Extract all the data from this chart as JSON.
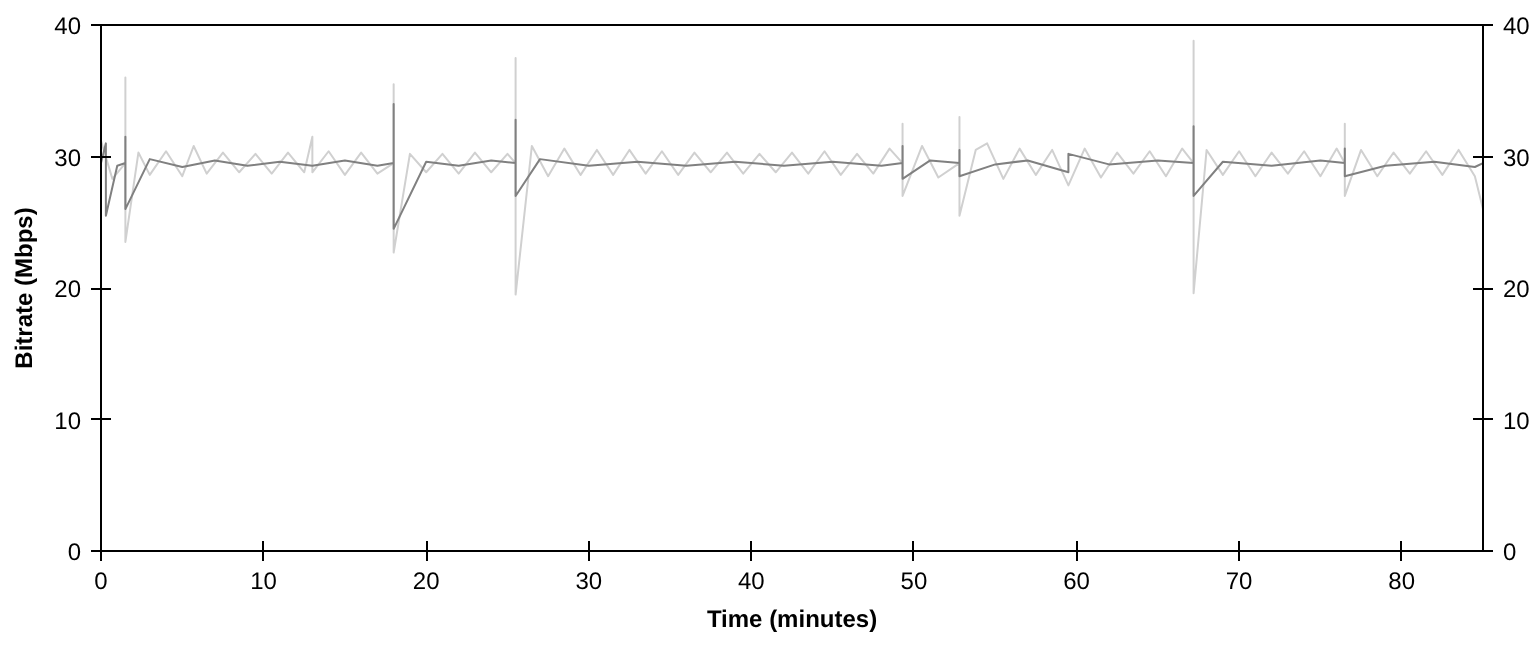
{
  "chart_data": {
    "type": "line",
    "xlabel": "Time (minutes)",
    "ylabel": "Bitrate (Mbps)",
    "xlim": [
      0,
      85
    ],
    "xticks": [
      0,
      10,
      20,
      30,
      40,
      50,
      60,
      70,
      80
    ],
    "ylim": [
      0,
      40
    ],
    "yticks": [
      0,
      10,
      20,
      30,
      40
    ],
    "y2lim": [
      0,
      40
    ],
    "y2ticks": [
      0,
      10,
      20,
      30,
      40
    ],
    "grid": false,
    "marker": "none",
    "line_style": "solid",
    "series": [
      {
        "color": "#d0d0d0",
        "x": [
          0,
          0.7,
          1.5,
          1.5,
          1.5,
          2.3,
          3,
          4,
          5,
          5.7,
          6.5,
          7.5,
          8.5,
          9.5,
          10.5,
          11.5,
          12.5,
          13,
          13,
          14,
          15,
          16,
          17,
          18,
          18,
          18,
          19,
          20,
          21,
          22,
          23,
          24,
          25,
          25.5,
          25.5,
          25.5,
          26.5,
          27.5,
          28.5,
          29.5,
          30.5,
          31.5,
          32.5,
          33.5,
          34.5,
          35.5,
          36.5,
          37.5,
          38.5,
          39.5,
          40.5,
          41.5,
          42.5,
          43.5,
          44.5,
          45.5,
          46.5,
          47.5,
          48.5,
          49.3,
          49.3,
          49.3,
          50.5,
          51.5,
          52.8,
          52.8,
          52.8,
          53.8,
          54.5,
          55.5,
          56.5,
          57.5,
          58.5,
          59.5,
          60.5,
          61.5,
          62.5,
          63.5,
          64.5,
          65.5,
          66.5,
          67.2,
          67.2,
          67.2,
          68,
          69,
          70,
          71,
          72,
          73,
          74,
          75,
          76,
          76.5,
          76.5,
          76.5,
          77.5,
          78.5,
          79.5,
          80.5,
          81.5,
          82.5,
          83.5,
          84.5,
          85
        ],
        "values": [
          31.2,
          28.3,
          29.5,
          36,
          23.5,
          30.3,
          28.6,
          30.4,
          28.5,
          30.8,
          28.7,
          30.3,
          28.8,
          30.2,
          28.7,
          30.3,
          28.8,
          31.5,
          28.8,
          30.4,
          28.6,
          30.3,
          28.7,
          29.5,
          35.5,
          22.7,
          30.2,
          28.8,
          30.2,
          28.7,
          30.3,
          28.8,
          30.2,
          29.5,
          37.5,
          19.5,
          30.8,
          28.5,
          30.6,
          28.6,
          30.5,
          28.6,
          30.5,
          28.7,
          30.4,
          28.6,
          30.3,
          28.8,
          30.3,
          28.7,
          30.2,
          28.8,
          30.3,
          28.7,
          30.4,
          28.6,
          30.2,
          28.7,
          30.6,
          29.5,
          32.5,
          27,
          30.8,
          28.4,
          29.5,
          33,
          25.5,
          30.5,
          31,
          28.3,
          30.6,
          28.6,
          30.5,
          27.8,
          30.6,
          28.4,
          30.3,
          28.7,
          30.4,
          28.5,
          30.6,
          29.5,
          38.8,
          19.6,
          30.5,
          28.6,
          30.4,
          28.5,
          30.3,
          28.7,
          30.4,
          28.5,
          30.6,
          29.5,
          32.5,
          27,
          30.5,
          28.5,
          30.3,
          28.7,
          30.4,
          28.6,
          30.5,
          28.5,
          26
        ]
      },
      {
        "color": "#808080",
        "x": [
          0,
          0.3,
          0.3,
          1,
          1.5,
          1.5,
          1.5,
          3,
          5,
          7,
          9,
          11,
          13,
          15,
          17,
          18,
          18,
          18,
          20,
          22,
          24,
          25.5,
          25.5,
          25.5,
          27,
          30,
          33,
          36,
          39,
          42,
          45,
          48,
          49.3,
          49.3,
          49.3,
          51,
          52.8,
          52.8,
          52.8,
          55,
          57,
          59.5,
          59.5,
          62,
          65,
          67.2,
          67.2,
          67.2,
          69,
          72,
          75,
          76.5,
          76.5,
          76.5,
          79,
          82,
          84.5,
          85
        ],
        "values": [
          29.5,
          31,
          25.5,
          29.3,
          29.5,
          31.5,
          26,
          29.8,
          29.2,
          29.7,
          29.3,
          29.6,
          29.3,
          29.7,
          29.3,
          29.5,
          34,
          24.5,
          29.6,
          29.3,
          29.7,
          29.5,
          32.8,
          27,
          29.8,
          29.3,
          29.6,
          29.3,
          29.6,
          29.3,
          29.6,
          29.3,
          29.5,
          30.8,
          28.3,
          29.7,
          29.5,
          30.5,
          28.5,
          29.4,
          29.7,
          28.8,
          30.2,
          29.4,
          29.7,
          29.5,
          32.3,
          27,
          29.6,
          29.3,
          29.7,
          29.5,
          30.6,
          28.5,
          29.3,
          29.6,
          29.2,
          29.5
        ]
      }
    ]
  }
}
